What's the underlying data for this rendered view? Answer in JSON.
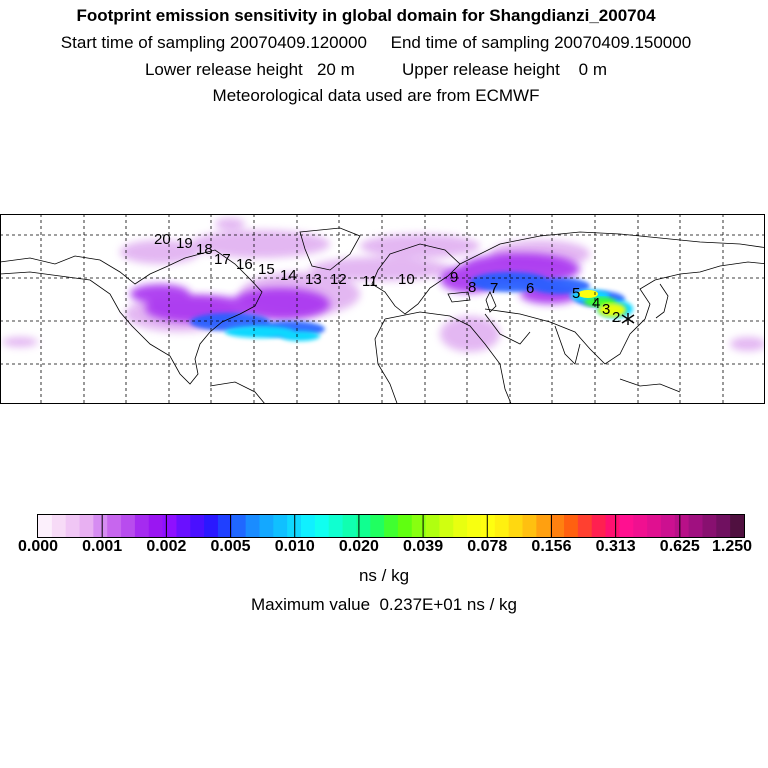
{
  "header": {
    "title": "Footprint emission sensitivity in global domain for Shangdianzi_200704",
    "line1": "Start time of sampling 20070409.120000     End time of sampling 20070409.150000",
    "line2": "Lower release height   20 m          Upper release height    0 m",
    "line3": "Meteorological data used are from ECMWF"
  },
  "colorbar": {
    "tick_labels": [
      "0.000",
      "0.001",
      "0.002",
      "0.005",
      "0.010",
      "0.020",
      "0.039",
      "0.078",
      "0.156",
      "0.313",
      "0.625",
      "1.250"
    ],
    "colors": [
      "#fcf0fc",
      "#f7dbf7",
      "#f0c6f5",
      "#e8b0f2",
      "#d68cf2",
      "#c766ee",
      "#b84cee",
      "#a52bf0",
      "#9a16f2",
      "#8e10ff",
      "#6a10ff",
      "#4a10ff",
      "#2a18ff",
      "#2040ff",
      "#2068ff",
      "#1a8cff",
      "#14a8ff",
      "#10c0ff",
      "#10d8ff",
      "#10f0ff",
      "#10fff0",
      "#10ffd0",
      "#10ffb0",
      "#10ff90",
      "#20ff60",
      "#40ff30",
      "#60ff10",
      "#88ff10",
      "#b0ff10",
      "#d0ff10",
      "#e8ff10",
      "#f8ff10",
      "#ffff10",
      "#fff010",
      "#ffd810",
      "#ffc010",
      "#ffa010",
      "#ff8010",
      "#ff6010",
      "#ff4030",
      "#ff2050",
      "#ff1070",
      "#ff1090",
      "#f01090",
      "#e01090",
      "#cc1090",
      "#b81088",
      "#a01080",
      "#881070",
      "#701060",
      "#501040"
    ],
    "units": "ns / kg",
    "max_value": "Maximum value  0.237E+01 ns / kg"
  },
  "map": {
    "track_labels": [
      "2",
      "3",
      "4",
      "5",
      "6",
      "7",
      "8",
      "9",
      "10",
      "11",
      "12",
      "13",
      "14",
      "15",
      "16",
      "17",
      "18",
      "19",
      "20"
    ],
    "station_marker_color": "#000000"
  }
}
